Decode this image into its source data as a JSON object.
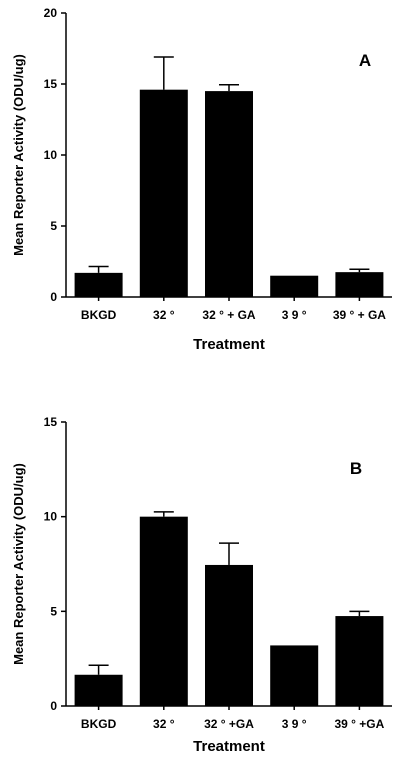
{
  "chart_data": [
    {
      "type": "bar",
      "panel_letter": "A",
      "ylabel": "Mean  Reporter  Activity  (ODU/ug)",
      "xlabel": "Treatment",
      "ylim": [
        0,
        20
      ],
      "yticks": [
        "0",
        "5",
        "10",
        "15",
        "20"
      ],
      "categories": [
        "BKGD",
        "32 °",
        "32 ° + GA",
        "3 9 °",
        "39 ° + GA"
      ],
      "values": [
        1.7,
        14.6,
        14.5,
        1.5,
        1.75
      ],
      "errors": [
        0.45,
        2.3,
        0.45,
        0,
        0.2
      ],
      "bar_color": "#000000",
      "grid": false
    },
    {
      "type": "bar",
      "panel_letter": "B",
      "ylabel": "Mean Reporter Activity (ODU/ug)",
      "xlabel": "Treatment",
      "ylim": [
        0,
        15
      ],
      "yticks": [
        "0",
        "5",
        "10",
        "15"
      ],
      "categories": [
        "BKGD",
        "32 °",
        "32 ° +GA",
        "3 9 °",
        "39 ° +GA"
      ],
      "values": [
        1.65,
        10.0,
        7.45,
        3.2,
        4.75
      ],
      "errors": [
        0.5,
        0.25,
        1.15,
        0,
        0.25
      ],
      "bar_color": "#000000",
      "grid": false
    }
  ]
}
